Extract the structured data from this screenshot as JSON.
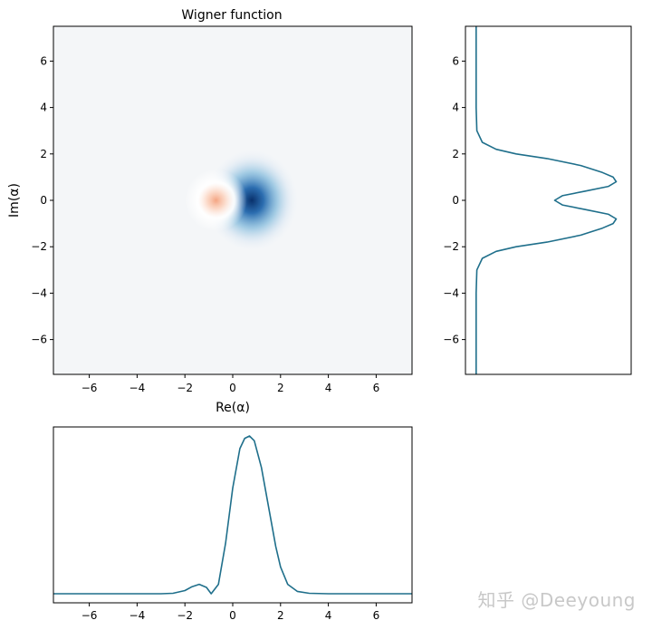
{
  "watermark": "知乎 @Deeyoung",
  "chart_data": [
    {
      "type": "heatmap",
      "title": "Wigner function",
      "xlabel": "Re(α)",
      "ylabel": "Im(α)",
      "xlim": [
        -7.5,
        7.5
      ],
      "ylim": [
        -7.5,
        7.5
      ],
      "xticks": [
        -6,
        -4,
        -2,
        0,
        2,
        4,
        6
      ],
      "yticks": [
        -6,
        -4,
        -2,
        0,
        2,
        4,
        6
      ],
      "colormap": "RdBu",
      "colors": {
        "negative": "#f4a582",
        "positive": "#08306b",
        "zero": "#f7f7f7"
      },
      "features": [
        {
          "kind": "positive-lobe",
          "center": [
            0.8,
            0.0
          ],
          "spread": 0.85
        },
        {
          "kind": "negative-core",
          "center": [
            -0.7,
            0.0
          ],
          "spread": 0.5
        }
      ]
    },
    {
      "type": "line",
      "orientation": "vertical",
      "ylim": [
        -7.5,
        7.5
      ],
      "yticks": [
        -6,
        -4,
        -2,
        0,
        2,
        4,
        6
      ],
      "xticks": [],
      "color": "#1f6f8b",
      "y": [
        -7.5,
        -6.0,
        -4.0,
        -3.0,
        -2.5,
        -2.2,
        -2.0,
        -1.8,
        -1.5,
        -1.2,
        -1.0,
        -0.8,
        -0.6,
        -0.4,
        -0.2,
        0.0,
        0.2,
        0.4,
        0.6,
        0.8,
        1.0,
        1.2,
        1.5,
        1.8,
        2.0,
        2.2,
        2.5,
        3.0,
        4.0,
        6.0,
        7.5
      ],
      "values": [
        0.04,
        0.04,
        0.04,
        0.045,
        0.08,
        0.17,
        0.3,
        0.5,
        0.72,
        0.86,
        0.93,
        0.95,
        0.9,
        0.75,
        0.6,
        0.55,
        0.6,
        0.75,
        0.9,
        0.95,
        0.93,
        0.86,
        0.72,
        0.5,
        0.3,
        0.17,
        0.08,
        0.045,
        0.04,
        0.04,
        0.04
      ]
    },
    {
      "type": "line",
      "xlim": [
        -7.5,
        7.5
      ],
      "xticks": [
        -6,
        -4,
        -2,
        0,
        2,
        4,
        6
      ],
      "yticks": [],
      "color": "#1f6f8b",
      "x": [
        -7.5,
        -4.0,
        -3.0,
        -2.5,
        -2.0,
        -1.7,
        -1.4,
        -1.1,
        -0.9,
        -0.6,
        -0.3,
        0.0,
        0.3,
        0.5,
        0.7,
        0.9,
        1.2,
        1.5,
        1.8,
        2.0,
        2.3,
        2.7,
        3.2,
        4.0,
        6.0,
        7.5
      ],
      "values": [
        0.0,
        0.0,
        0.0,
        0.003,
        0.02,
        0.045,
        0.06,
        0.04,
        0.0,
        0.06,
        0.32,
        0.67,
        0.92,
        0.985,
        1.0,
        0.97,
        0.8,
        0.55,
        0.3,
        0.17,
        0.06,
        0.015,
        0.003,
        0.0,
        0.0,
        0.0
      ]
    }
  ]
}
